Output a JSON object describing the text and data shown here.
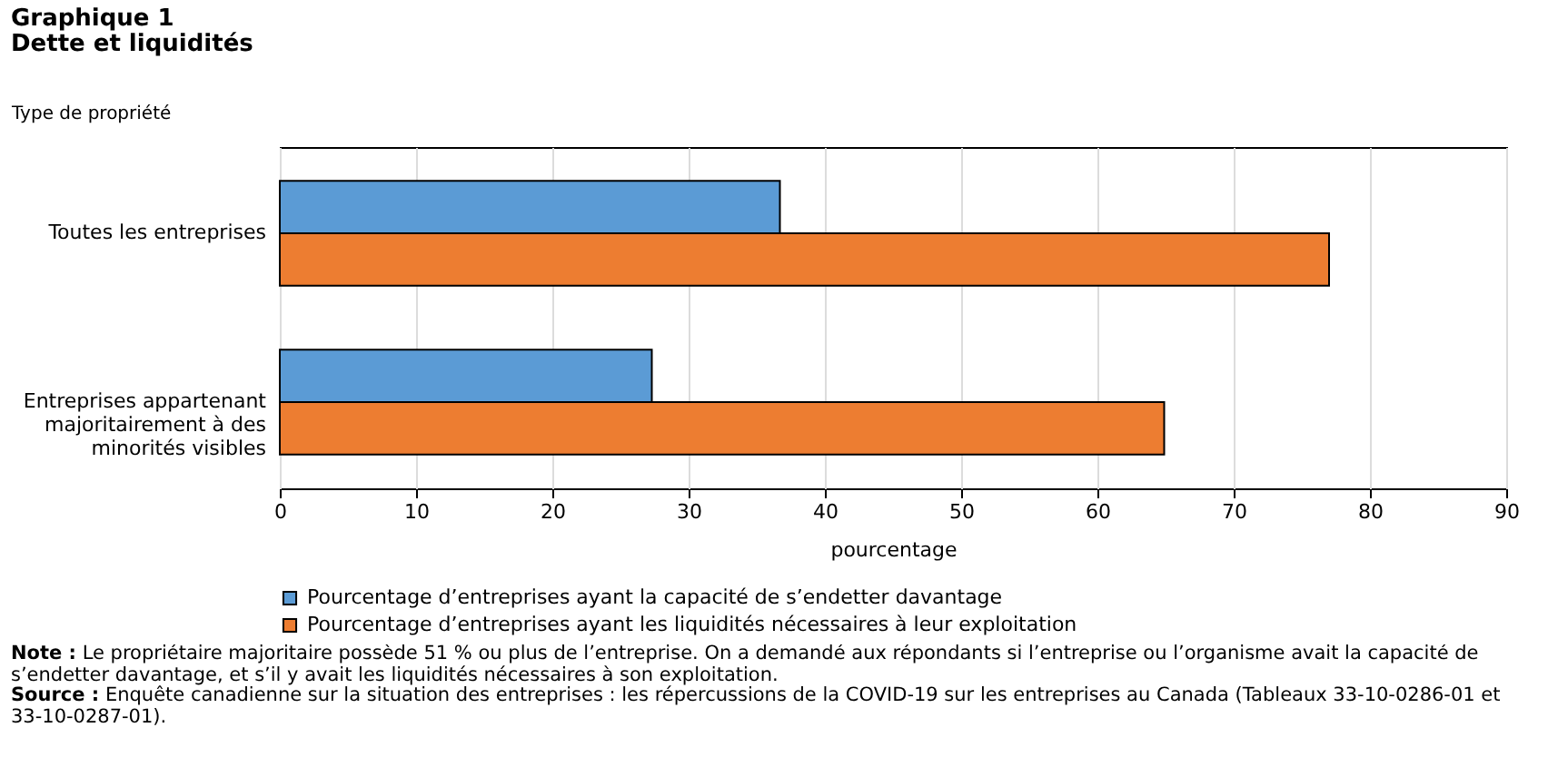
{
  "chart_data": {
    "type": "bar",
    "orientation": "horizontal",
    "title": "Graphique  1",
    "subtitle": "Dette et liquidités",
    "ylabel": "Type de propriété",
    "xlabel": "pourcentage",
    "categories": [
      "Toutes les entreprises",
      "Entreprises appartenant majoritairement à des minorités visibles"
    ],
    "series": [
      {
        "name": "Pourcentage d’entreprises ayant la capacité de s’endetter davantage",
        "color": "#5b9bd5",
        "values": [
          36.7,
          27.3
        ]
      },
      {
        "name": "Pourcentage d’entreprises ayant les liquidités nécessaires à leur exploitation",
        "color": "#ed7d31",
        "values": [
          77.0,
          64.9
        ]
      }
    ],
    "xlim": [
      0,
      90
    ],
    "xticks": [
      0,
      10,
      20,
      30,
      40,
      50,
      60,
      70,
      80,
      90
    ],
    "grid": "x",
    "legend": "bottom",
    "annotations": [
      "Note : Le propriétaire majoritaire possède 51 % ou plus de l’entreprise. On a demandé aux répondants si l’entreprise ou l’organisme avait la capacité de s’endetter davantage, et s’il y avait les liquidités nécessaires à son exploitation.",
      "Source : Enquête canadienne sur la situation des entreprises : les répercussions de la COVID-19 sur les entreprises au Canada (Tableaux 33-10-0286-01 et 33-10-0287-01)."
    ]
  }
}
